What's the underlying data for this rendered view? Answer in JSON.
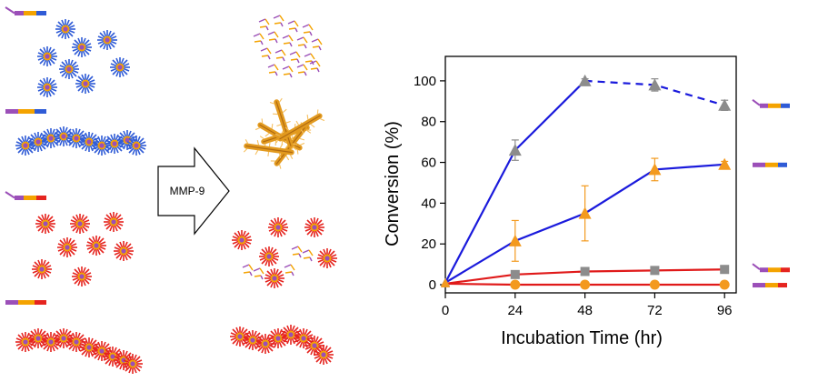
{
  "arrow": {
    "label": "MMP-9"
  },
  "colors": {
    "blue_line": "#1a1adc",
    "red_line": "#e01a1a",
    "gray_marker": "#8c8c8c",
    "orange_marker": "#f39a1e",
    "purple_seg": "#9b4fb8",
    "orange_seg": "#f4a300",
    "blue_seg": "#2f5bd6",
    "red_seg": "#e5241f"
  },
  "chart_data": {
    "type": "line",
    "xlabel": "Incubation Time (hr)",
    "ylabel": "Conversion (%)",
    "xlim": [
      0,
      100
    ],
    "ylim": [
      -4,
      112
    ],
    "xticks": [
      "0",
      "24",
      "48",
      "72",
      "96"
    ],
    "yticks": [
      "0",
      "20",
      "40",
      "60",
      "80",
      "100"
    ],
    "grid": false,
    "series": [
      {
        "marker": "triangle",
        "marker_color": "#8c8c8c",
        "line_color": "#1a1adc",
        "x": [
          0,
          24,
          48,
          72,
          96
        ],
        "y": [
          1,
          66,
          100,
          98,
          88
        ],
        "err": [
          0,
          5,
          1,
          3,
          2.5
        ],
        "dashed_from": 48,
        "legend_icon": "blue"
      },
      {
        "marker": "triangle",
        "marker_color": "#f39a1e",
        "line_color": "#1a1adc",
        "x": [
          0,
          24,
          48,
          72,
          96
        ],
        "y": [
          1,
          21.5,
          35,
          56.5,
          59
        ],
        "err": [
          0,
          10,
          13.5,
          5.5,
          1.5
        ],
        "legend_icon": "blue"
      },
      {
        "marker": "square",
        "marker_color": "#8c8c8c",
        "line_color": "#e01a1a",
        "x": [
          0,
          24,
          48,
          72,
          96
        ],
        "y": [
          0.5,
          5,
          6.5,
          7,
          7.5
        ],
        "err": [
          0,
          0,
          0,
          0,
          0
        ],
        "legend_icon": "red"
      },
      {
        "marker": "circle",
        "marker_color": "#f39a1e",
        "line_color": "#e01a1a",
        "x": [
          0,
          24,
          48,
          72,
          96
        ],
        "y": [
          0.5,
          0,
          0,
          0,
          0
        ],
        "err": [
          0,
          0,
          0,
          0,
          0
        ],
        "legend_icon": "red"
      }
    ]
  }
}
